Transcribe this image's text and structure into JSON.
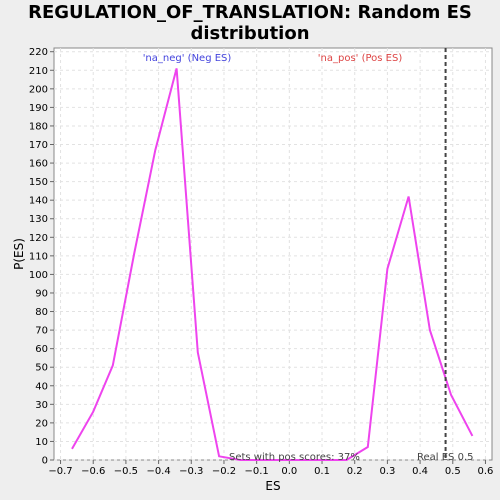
{
  "title_line1": "REGULATION_OF_TRANSLATION: Random ES",
  "title_line2": "distribution",
  "chart_data": {
    "type": "line",
    "xlabel": "ES",
    "ylabel": "P(ES)",
    "xlim": [
      -0.72,
      0.62
    ],
    "ylim": [
      0,
      222
    ],
    "xticks": [
      -0.7,
      -0.6,
      -0.5,
      -0.4,
      -0.3,
      -0.2,
      -0.1,
      0.0,
      0.1,
      0.2,
      0.3,
      0.4,
      0.5,
      0.6
    ],
    "xtick_labels": [
      "−0.7",
      "−0.6",
      "−0.5",
      "−0.4",
      "−0.3",
      "−0.2",
      "−0.1",
      "0.0",
      "0.1",
      "0.2",
      "0.3",
      "0.4",
      "0.5",
      "0.6"
    ],
    "yticks": [
      0,
      10,
      20,
      30,
      40,
      50,
      60,
      70,
      80,
      90,
      100,
      110,
      120,
      130,
      140,
      150,
      160,
      170,
      180,
      190,
      200,
      210,
      220
    ],
    "grid": true,
    "line_color": "#ee44ee",
    "series": [
      {
        "x": [
          -0.665,
          -0.6,
          -0.54,
          -0.475,
          -0.41,
          -0.345,
          -0.28,
          -0.215,
          -0.15,
          -0.085,
          -0.02,
          0.045,
          0.11,
          0.175,
          0.24,
          0.3,
          0.365,
          0.43,
          0.495,
          0.56
        ],
        "y": [
          6,
          26,
          51,
          111,
          167,
          211,
          58,
          2,
          0,
          0,
          0,
          0,
          0,
          0,
          7,
          103,
          142,
          70,
          35,
          13
        ]
      }
    ],
    "annotations": {
      "neg_label": "'na_neg' (Neg ES)",
      "neg_color": "#4444dd",
      "pos_label": "'na_pos' (Pos ES)",
      "pos_color": "#dd4444",
      "pos_scores": "Sets with pos scores: 37%",
      "real_es_label": "Real ES 0.5",
      "real_es": 0.478
    }
  }
}
